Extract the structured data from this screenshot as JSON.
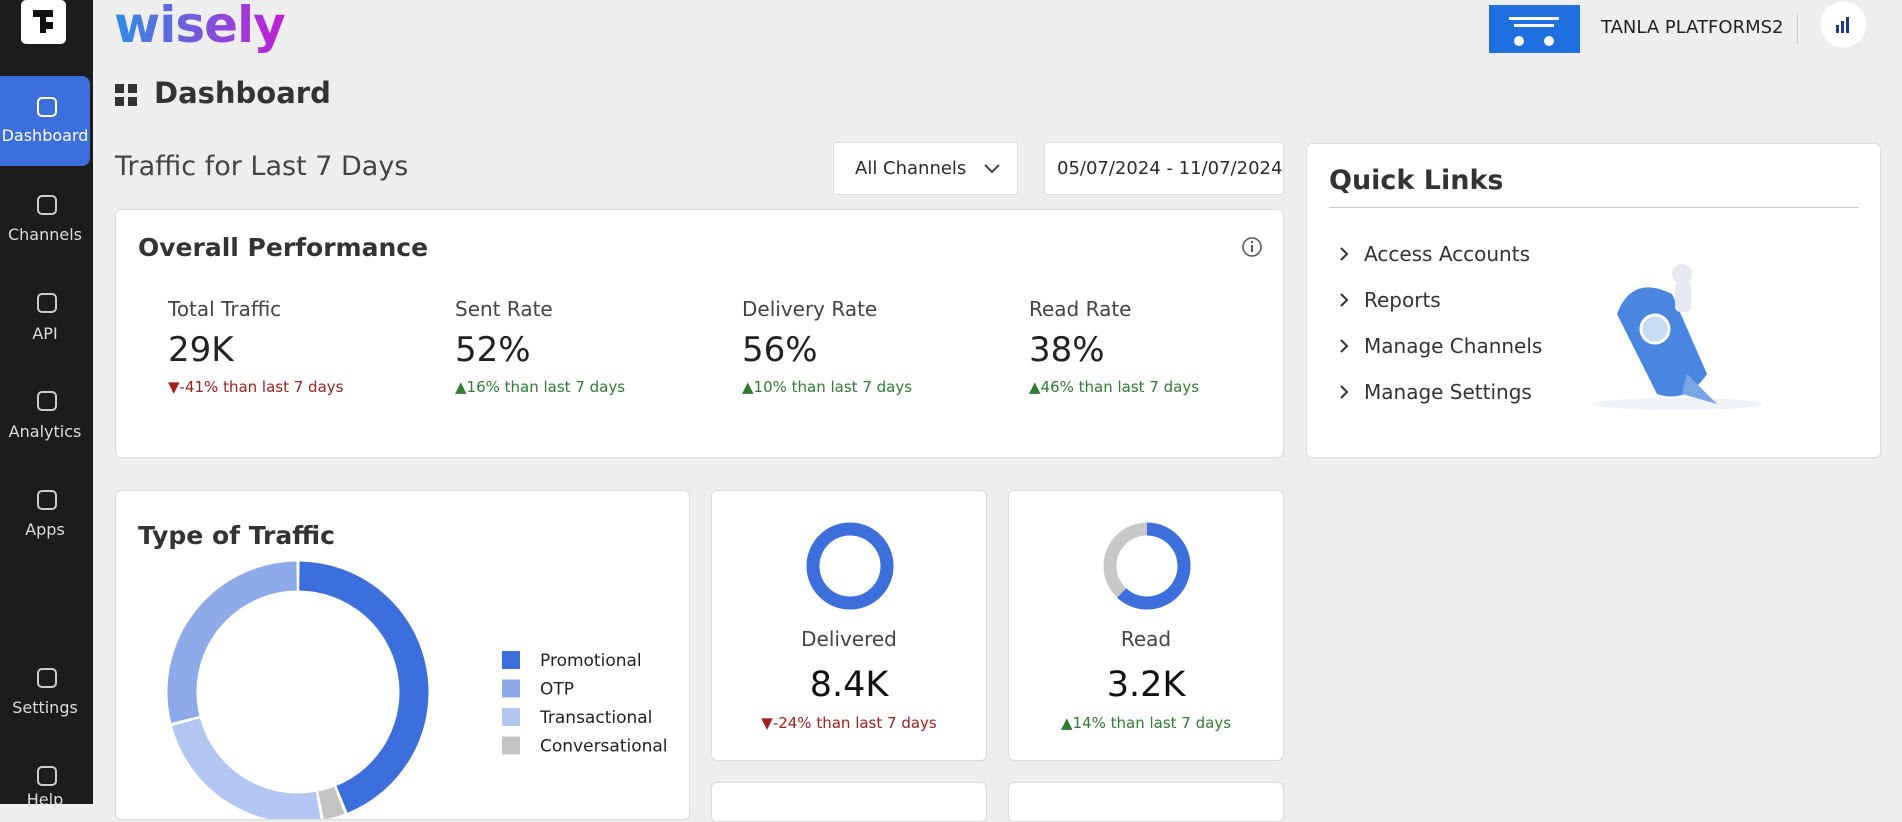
{
  "sidebar": {
    "items": [
      "Dashboard",
      "Channels",
      "API",
      "Analytics",
      "Apps",
      "Settings",
      "Help"
    ],
    "active": 0
  },
  "header": {
    "logo": "wisely",
    "account": "TANLA PLATFORMS2"
  },
  "page_title": "Dashboard",
  "traffic": {
    "title": "Traffic for Last 7 Days",
    "channel_filter": "All Channels",
    "date_range": "05/07/2024 - 11/07/2024"
  },
  "overall": {
    "title": "Overall Performance",
    "metrics": [
      {
        "label": "Total Traffic",
        "value": "29K",
        "change": "-41% than last 7 days",
        "trend": "down"
      },
      {
        "label": "Sent Rate",
        "value": "52%",
        "change": "16% than last 7 days",
        "trend": "up"
      },
      {
        "label": "Delivery Rate",
        "value": "56%",
        "change": "10% than last 7 days",
        "trend": "up"
      },
      {
        "label": "Read Rate",
        "value": "38%",
        "change": "46% than last 7 days",
        "trend": "up"
      }
    ]
  },
  "quick_links": {
    "title": "Quick Links",
    "items": [
      "Access Accounts",
      "Reports",
      "Manage Channels",
      "Manage Settings"
    ]
  },
  "traffic_types": {
    "title": "Type of Traffic",
    "series": [
      {
        "name": "Promotional",
        "color": "#3d6fdc",
        "value": 44
      },
      {
        "name": "OTP",
        "color": "#8eaae9",
        "value": 29
      },
      {
        "name": "Transactional",
        "color": "#b3c6f1",
        "value": 24
      },
      {
        "name": "Conversational",
        "color": "#c4c4c4",
        "value": 3
      }
    ],
    "draw_order": [
      0,
      3,
      2,
      1
    ]
  },
  "status_cards": [
    {
      "label": "Delivered",
      "value": "8.4K",
      "change": "-24% than last 7 days",
      "trend": "down",
      "share": 100,
      "color": "#3d6fdc"
    },
    {
      "label": "Read",
      "value": "3.2K",
      "change": "14% than last 7 days",
      "trend": "up",
      "share": 62,
      "color": "#3d6fdc"
    }
  ]
}
